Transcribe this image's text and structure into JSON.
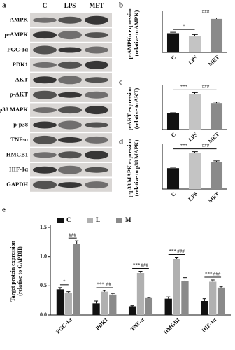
{
  "blot": {
    "panel": "a",
    "columns": [
      "C",
      "LPS",
      "MET"
    ],
    "rows": [
      "AMPK",
      "p-AMPK",
      "PGC-1α",
      "PDK1",
      "AKT",
      "p-AKT",
      "p38 MAPK",
      "p-p38",
      "TNF-α",
      "HMGB1",
      "HIF-1α",
      "GAPDH"
    ]
  },
  "chart_data": [
    {
      "type": "bar",
      "panel": "b",
      "ylabel": [
        "p-AMPKα expression",
        "(relative to AMPK)"
      ],
      "categories": [
        "C",
        "LPS",
        "MET"
      ],
      "values": [
        0.6,
        0.52,
        1.05
      ],
      "errors": [
        0.03,
        0.04,
        0.03
      ],
      "colors": [
        "#111111",
        "#c4c4c4",
        "#8a8a8a"
      ],
      "ylim": [
        0,
        1.2
      ],
      "annotations": [
        "*",
        "###"
      ]
    },
    {
      "type": "bar",
      "panel": "c",
      "ylabel": [
        "p-AKT expression",
        "(relative to AKT)"
      ],
      "categories": [
        "C",
        "LPS",
        "MET"
      ],
      "values": [
        0.5,
        1.1,
        0.82
      ],
      "errors": [
        0.02,
        0.04,
        0.03
      ],
      "colors": [
        "#111111",
        "#c4c4c4",
        "#8a8a8a"
      ],
      "ylim": [
        0,
        1.3
      ],
      "annotations": [
        "***",
        "###"
      ]
    },
    {
      "type": "bar",
      "panel": "d",
      "ylabel": [
        "p-p38 MAPK expression",
        "(relative to p38 MAPK)"
      ],
      "categories": [
        "C",
        "LPS",
        "MET"
      ],
      "values": [
        0.72,
        1.25,
        0.93
      ],
      "errors": [
        0.03,
        0.04,
        0.04
      ],
      "colors": [
        "#111111",
        "#c4c4c4",
        "#8a8a8a"
      ],
      "ylim": [
        0,
        1.45
      ],
      "annotations": [
        "***",
        "###"
      ]
    },
    {
      "type": "bar",
      "panel": "e",
      "ylabel": [
        "Target protein expression",
        "(relative to GAPDH)"
      ],
      "categories": [
        "PGC-1α",
        "PDK1",
        "TNF-α",
        "HMGB1",
        "HIF-1α"
      ],
      "series": [
        {
          "name": "C",
          "color": "#111111",
          "values": [
            0.44,
            0.2,
            0.15,
            0.28,
            0.24
          ],
          "errors": [
            0.03,
            0.04,
            0.01,
            0.03,
            0.04
          ]
        },
        {
          "name": "L",
          "color": "#b0b0b0",
          "values": [
            0.38,
            0.4,
            0.72,
            0.96,
            0.57
          ],
          "errors": [
            0.02,
            0.02,
            0.03,
            0.03,
            0.03
          ]
        },
        {
          "name": "M",
          "color": "#8a8a8a",
          "values": [
            1.22,
            0.35,
            0.29,
            0.58,
            0.47
          ],
          "errors": [
            0.05,
            0.02,
            0.01,
            0.06,
            0.02
          ]
        }
      ],
      "ylim": [
        0,
        1.5
      ],
      "yticks": [
        {
          "value": 0,
          "label": "0.0"
        },
        {
          "value": 0.5,
          "label": "0.5"
        },
        {
          "value": 1,
          "label": "1.0"
        },
        {
          "value": 1.5,
          "label": "1.5"
        }
      ],
      "annotations": [
        [
          "*",
          "###"
        ],
        [
          "***",
          "##"
        ],
        [
          "***",
          "###"
        ],
        [
          "***",
          "###"
        ],
        [
          "***",
          "###"
        ]
      ]
    }
  ]
}
